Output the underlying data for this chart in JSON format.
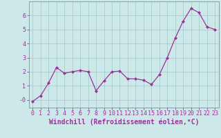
{
  "x": [
    0,
    1,
    2,
    3,
    4,
    5,
    6,
    7,
    8,
    9,
    10,
    11,
    12,
    13,
    14,
    15,
    16,
    17,
    18,
    19,
    20,
    21,
    22,
    23
  ],
  "y": [
    -0.1,
    0.3,
    1.2,
    2.3,
    1.9,
    2.0,
    2.1,
    2.0,
    0.65,
    1.35,
    2.0,
    2.05,
    1.5,
    1.5,
    1.4,
    1.1,
    1.8,
    3.0,
    4.4,
    5.6,
    6.5,
    6.2,
    5.2,
    5.0
  ],
  "line_color": "#993399",
  "marker": "D",
  "marker_size": 2,
  "bg_color": "#cce8e8",
  "grid_color": "#aacccc",
  "tick_color": "#993399",
  "xlabel": "Windchill (Refroidissement éolien,°C)",
  "xlim": [
    -0.5,
    23.5
  ],
  "ylim": [
    -0.55,
    7.0
  ],
  "yticks": [
    0,
    1,
    2,
    3,
    4,
    5,
    6
  ],
  "ytick_labels": [
    "-0",
    "1",
    "2",
    "3",
    "4",
    "5",
    "6"
  ],
  "xticks": [
    0,
    1,
    2,
    3,
    4,
    5,
    6,
    7,
    8,
    9,
    10,
    11,
    12,
    13,
    14,
    15,
    16,
    17,
    18,
    19,
    20,
    21,
    22,
    23
  ],
  "tick_fontsize": 6,
  "xlabel_fontsize": 7
}
